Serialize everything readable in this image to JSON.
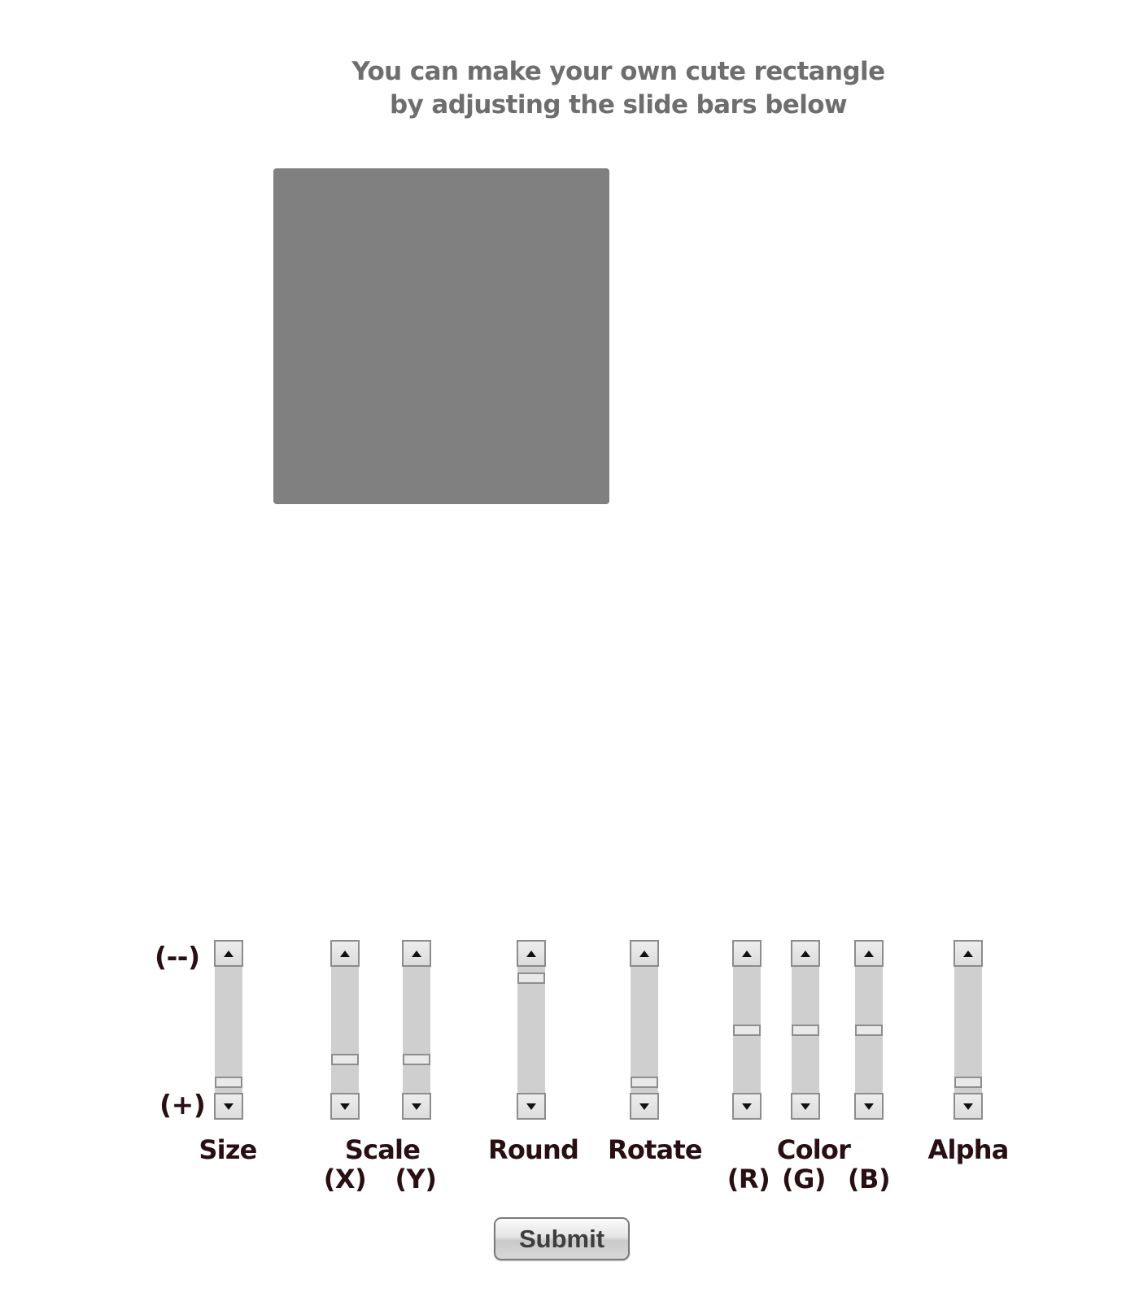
{
  "instructions": {
    "line1": "You can make your own cute rectangle",
    "line2": "by adjusting the slide bars below"
  },
  "preview": {
    "fill_color": "#808080"
  },
  "range_labels": {
    "min": "(--)",
    "max": "(+)"
  },
  "sliders": [
    {
      "id": "size",
      "value_fraction": 0.96
    },
    {
      "id": "scale-x",
      "value_fraction": 0.76
    },
    {
      "id": "scale-y",
      "value_fraction": 0.76
    },
    {
      "id": "round",
      "value_fraction": 0.05
    },
    {
      "id": "rotate",
      "value_fraction": 0.96
    },
    {
      "id": "color-r",
      "value_fraction": 0.5
    },
    {
      "id": "color-g",
      "value_fraction": 0.5
    },
    {
      "id": "color-b",
      "value_fraction": 0.5
    },
    {
      "id": "alpha",
      "value_fraction": 0.96
    }
  ],
  "labels": {
    "size": "Size",
    "scale": "Scale",
    "scale_x": "(X)",
    "scale_y": "(Y)",
    "round": "Round",
    "rotate": "Rotate",
    "color": "Color",
    "color_r": "(R)",
    "color_g": "(G)",
    "color_b": "(B)",
    "alpha": "Alpha"
  },
  "icons": {
    "up": "arrow-up-icon",
    "down": "arrow-down-icon"
  },
  "submit": {
    "label": "Submit"
  }
}
